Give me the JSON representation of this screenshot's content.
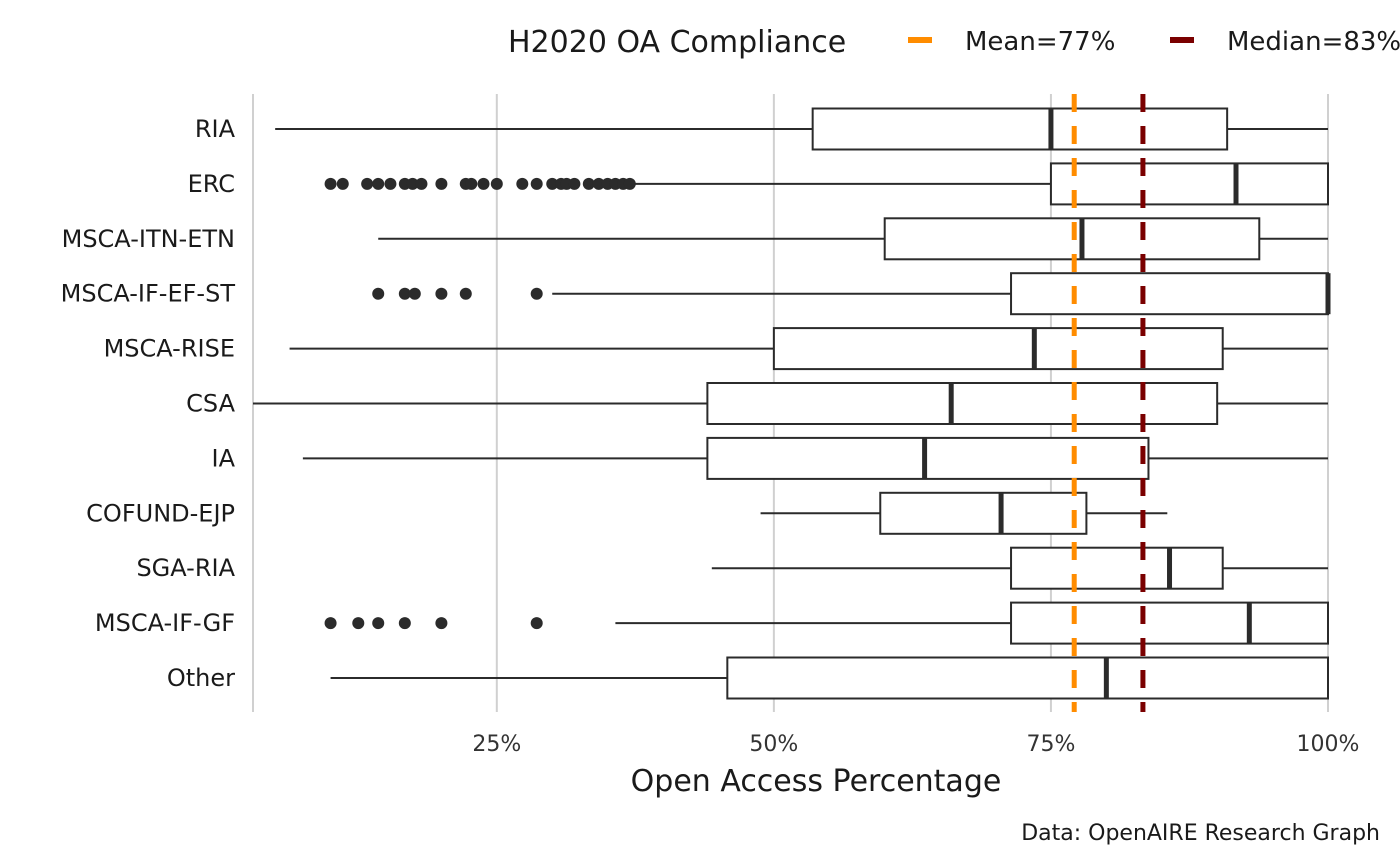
{
  "chart_data": {
    "type": "boxplot",
    "orientation": "horizontal",
    "title": "",
    "xlabel": "Open Access Percentage",
    "ylabel": "",
    "caption": "Data: OpenAIRE Research Graph",
    "xlim": [
      3,
      100
    ],
    "xticks": [
      25,
      50,
      75,
      100
    ],
    "xtick_labels": [
      "25%",
      "50%",
      "75%",
      "100%"
    ],
    "grid": "vertical-major",
    "legend": {
      "position": "top-right",
      "title": "H2020 OA Compliance",
      "entries": [
        {
          "label": "Mean=77%",
          "color": "#FF8C00",
          "value": 77.1
        },
        {
          "label": "Median=83%",
          "color": "#7A0000",
          "value": 83.3
        }
      ]
    },
    "categories": [
      "RIA",
      "ERC",
      "MSCA-ITN-ETN",
      "MSCA-IF-EF-ST",
      "MSCA-RISE",
      "CSA",
      "IA",
      "COFUND-EJP",
      "SGA-RIA",
      "MSCA-IF-GF",
      "Other"
    ],
    "boxes": [
      {
        "category": "RIA",
        "whisker_low": 5.0,
        "q1": 53.5,
        "median": 75.0,
        "q3": 90.9,
        "whisker_high": 100,
        "outliers": []
      },
      {
        "category": "ERC",
        "whisker_low": 37.5,
        "q1": 75.0,
        "median": 91.7,
        "q3": 100,
        "whisker_high": 100,
        "outliers": [
          10.0,
          11.1,
          13.3,
          14.3,
          15.4,
          16.7,
          17.4,
          18.2,
          20.0,
          22.2,
          22.7,
          23.8,
          25.0,
          27.3,
          28.6,
          30.0,
          30.8,
          31.3,
          32.0,
          33.3,
          34.2,
          35.0,
          35.7,
          36.4,
          37.0
        ]
      },
      {
        "category": "MSCA-ITN-ETN",
        "whisker_low": 14.3,
        "q1": 60.0,
        "median": 77.8,
        "q3": 93.8,
        "whisker_high": 100,
        "outliers": []
      },
      {
        "category": "MSCA-IF-EF-ST",
        "whisker_low": 30.0,
        "q1": 71.4,
        "median": 100,
        "q3": 100,
        "whisker_high": 100,
        "outliers": [
          14.3,
          16.7,
          17.6,
          20.0,
          22.2,
          28.6
        ]
      },
      {
        "category": "MSCA-RISE",
        "whisker_low": 6.3,
        "q1": 50.0,
        "median": 73.5,
        "q3": 90.5,
        "whisker_high": 100,
        "outliers": []
      },
      {
        "category": "CSA",
        "whisker_low": 3.0,
        "q1": 44.0,
        "median": 66.0,
        "q3": 90.0,
        "whisker_high": 100,
        "outliers": []
      },
      {
        "category": "IA",
        "whisker_low": 7.5,
        "q1": 44.0,
        "median": 63.6,
        "q3": 83.8,
        "whisker_high": 100,
        "outliers": []
      },
      {
        "category": "COFUND-EJP",
        "whisker_low": 48.8,
        "q1": 59.6,
        "median": 70.5,
        "q3": 78.2,
        "whisker_high": 85.5,
        "outliers": []
      },
      {
        "category": "SGA-RIA",
        "whisker_low": 44.4,
        "q1": 71.4,
        "median": 85.7,
        "q3": 90.5,
        "whisker_high": 100,
        "outliers": []
      },
      {
        "category": "MSCA-IF-GF",
        "whisker_low": 35.7,
        "q1": 71.4,
        "median": 92.9,
        "q3": 100,
        "whisker_high": 100,
        "outliers": [
          10.0,
          12.5,
          14.3,
          16.7,
          20.0,
          28.6
        ]
      },
      {
        "category": "Other",
        "whisker_low": 10.0,
        "q1": 45.8,
        "median": 80.0,
        "q3": 100,
        "whisker_high": 100,
        "outliers": []
      }
    ],
    "reference_lines": [
      {
        "label": "Mean=77%",
        "value": 77.1,
        "color": "#FF8C00",
        "style": "dashed"
      },
      {
        "label": "Median=83%",
        "value": 83.3,
        "color": "#7A0000",
        "style": "dashed"
      }
    ]
  }
}
